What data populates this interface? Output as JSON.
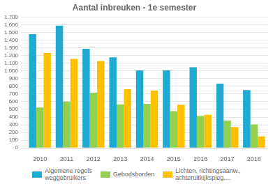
{
  "chart_data": {
    "type": "bar",
    "title": "Aantal inbreuken - 1e semester",
    "categories": [
      "2010",
      "2011",
      "2012",
      "2013",
      "2014",
      "2015",
      "2016",
      "2017",
      "2018"
    ],
    "series": [
      {
        "name": "Algemene regels\nweggebruikers",
        "color": "#1eaad1",
        "values": [
          1478,
          1589,
          1288,
          1177,
          1007,
          1007,
          1048,
          834,
          750
        ]
      },
      {
        "name": "Gebodsborden",
        "color": "#92d050",
        "values": [
          524,
          601,
          716,
          566,
          571,
          478,
          415,
          354,
          305
        ]
      },
      {
        "name": "Lichten, richtingsaanw.,\nachteruitkijkspieg....",
        "color": "#ffc000",
        "values": [
          1232,
          1155,
          1128,
          762,
          745,
          560,
          430,
          271,
          148
        ]
      }
    ],
    "ylim": [
      0,
      1700
    ],
    "yticks": [
      0,
      100,
      200,
      300,
      400,
      500,
      600,
      700,
      800,
      900,
      {
        "value": 1000,
        "label": "1.000"
      },
      {
        "value": 1100,
        "label": "1.100"
      },
      {
        "value": 1200,
        "label": "1.200"
      },
      {
        "value": 1300,
        "label": "1.300"
      },
      {
        "value": 1400,
        "label": "1.400"
      },
      {
        "value": 1500,
        "label": "1.500"
      },
      {
        "value": 1600,
        "label": "1.600"
      },
      {
        "value": 1700,
        "label": "1.700"
      }
    ],
    "grid": true,
    "legend": "bottom"
  }
}
